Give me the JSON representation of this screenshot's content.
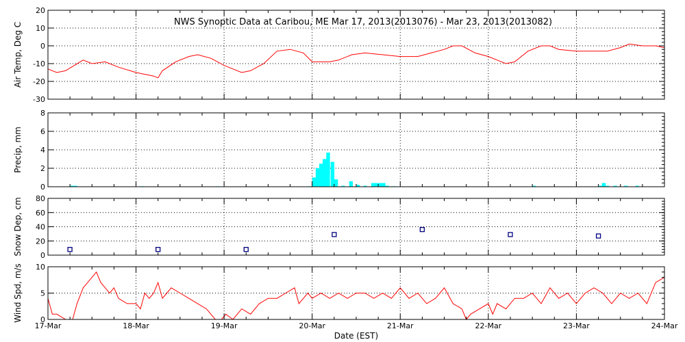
{
  "chart_data": {
    "type": "multi-panel timeseries",
    "title": "NWS Synoptic Data at Caribou, ME   Mar 17, 2013(2013076) - Mar 23, 2013(2013082)",
    "xlabel": "Date (EST)",
    "x_ticks": [
      "17-Mar",
      "18-Mar",
      "19-Mar",
      "20-Mar",
      "21-Mar",
      "22-Mar",
      "23-Mar",
      "24-Mar"
    ],
    "x_range_days": [
      0,
      7
    ],
    "colors": {
      "temp": "#ff0000",
      "precip": "#00ffff",
      "snow": "#000080",
      "wind": "#ff0000",
      "axes": "#000000"
    },
    "panels": [
      {
        "id": "temp",
        "type": "line",
        "ylabel": "Air Temp, Deg C",
        "ylim": [
          -30,
          20
        ],
        "yticks": [
          20,
          10,
          0,
          -10,
          -20,
          -30
        ],
        "x": [
          0,
          0.1,
          0.2,
          0.3,
          0.4,
          0.5,
          0.65,
          0.8,
          1.0,
          1.1,
          1.2,
          1.25,
          1.3,
          1.45,
          1.6,
          1.7,
          1.85,
          2.0,
          2.1,
          2.2,
          2.3,
          2.45,
          2.6,
          2.75,
          2.9,
          3.0,
          3.1,
          3.2,
          3.3,
          3.45,
          3.6,
          3.8,
          4.0,
          4.1,
          4.2,
          4.35,
          4.5,
          4.6,
          4.7,
          4.85,
          5.0,
          5.1,
          5.2,
          5.3,
          5.45,
          5.6,
          5.7,
          5.8,
          6.0,
          6.1,
          6.2,
          6.35,
          6.5,
          6.6,
          6.75,
          6.9,
          7.0
        ],
        "y": [
          -13,
          -15,
          -14,
          -11,
          -8,
          -10,
          -9,
          -12,
          -15,
          -16,
          -17,
          -18,
          -14,
          -9,
          -6,
          -5,
          -7,
          -11,
          -13,
          -15,
          -14,
          -10,
          -3,
          -2,
          -4,
          -9,
          -9,
          -9,
          -8,
          -5,
          -4,
          -5,
          -6,
          -6,
          -6,
          -4,
          -2,
          0,
          0,
          -4,
          -6,
          -8,
          -10,
          -9,
          -3,
          0,
          0,
          -2,
          -3,
          -3,
          -3,
          -3,
          -1,
          1,
          0,
          0,
          -1
        ]
      },
      {
        "id": "precip",
        "type": "bar",
        "ylabel": "Precip, mm",
        "ylim": [
          0,
          8
        ],
        "yticks": [
          8,
          6,
          4,
          2,
          0
        ],
        "bar_width_days": 0.0417,
        "x": [
          0.25,
          0.29,
          1.05,
          1.9,
          2.95,
          3.0,
          3.04,
          3.08,
          3.12,
          3.16,
          3.21,
          3.25,
          3.33,
          3.42,
          3.5,
          3.58,
          3.67,
          3.71,
          3.75,
          3.79,
          3.83,
          3.9,
          5.5,
          6.25,
          6.29,
          6.33,
          6.42,
          6.54,
          6.67
        ],
        "y": [
          0.1,
          0.1,
          0.05,
          0.05,
          0.05,
          1.0,
          2.0,
          2.5,
          3.0,
          3.7,
          2.7,
          0.8,
          0.1,
          0.6,
          0.2,
          0.1,
          0.4,
          0.4,
          0.4,
          0.4,
          0.1,
          0.05,
          0.1,
          0.1,
          0.4,
          0.1,
          0.1,
          0.1,
          0.1
        ]
      },
      {
        "id": "snow",
        "type": "scatter",
        "ylabel": "Snow Dep, cm",
        "ylim": [
          0,
          80
        ],
        "yticks": [
          80,
          60,
          40,
          20,
          0
        ],
        "x": [
          0.25,
          1.25,
          2.25,
          3.25,
          4.25,
          5.25,
          6.25
        ],
        "y": [
          8,
          8,
          8,
          29,
          36,
          29,
          27
        ]
      },
      {
        "id": "wind",
        "type": "line",
        "ylabel": "Wind Spd, m/s",
        "ylim": [
          0,
          10
        ],
        "yticks": [
          10,
          5,
          0
        ],
        "x": [
          0,
          0.05,
          0.1,
          0.2,
          0.28,
          0.33,
          0.4,
          0.5,
          0.55,
          0.6,
          0.65,
          0.7,
          0.75,
          0.8,
          0.9,
          1.0,
          1.05,
          1.1,
          1.15,
          1.2,
          1.25,
          1.3,
          1.35,
          1.4,
          1.5,
          1.6,
          1.7,
          1.8,
          1.9,
          1.97,
          2.02,
          2.1,
          2.15,
          2.2,
          2.3,
          2.4,
          2.5,
          2.6,
          2.7,
          2.8,
          2.85,
          2.95,
          3.0,
          3.1,
          3.2,
          3.3,
          3.4,
          3.5,
          3.6,
          3.7,
          3.8,
          3.9,
          4.0,
          4.1,
          4.2,
          4.3,
          4.4,
          4.5,
          4.6,
          4.7,
          4.75,
          4.8,
          4.9,
          5.0,
          5.05,
          5.1,
          5.2,
          5.3,
          5.4,
          5.5,
          5.6,
          5.7,
          5.8,
          5.9,
          6.0,
          6.1,
          6.2,
          6.3,
          6.4,
          6.5,
          6.6,
          6.7,
          6.8,
          6.9,
          7.0
        ],
        "y": [
          4,
          1,
          1,
          0,
          0,
          3,
          6,
          8,
          9,
          7,
          6,
          5,
          6,
          4,
          3,
          3,
          2,
          5,
          4,
          5,
          7,
          4,
          5,
          6,
          5,
          4,
          3,
          2,
          0,
          0,
          1,
          0,
          1,
          2,
          1,
          3,
          4,
          4,
          5,
          6,
          3,
          5,
          4,
          5,
          4,
          5,
          4,
          5,
          5,
          4,
          5,
          4,
          6,
          4,
          5,
          3,
          4,
          6,
          3,
          2,
          0,
          1,
          2,
          3,
          1,
          3,
          2,
          4,
          4,
          5,
          3,
          6,
          4,
          5,
          3,
          5,
          6,
          5,
          3,
          5,
          4,
          5,
          3,
          7,
          8
        ]
      }
    ]
  }
}
